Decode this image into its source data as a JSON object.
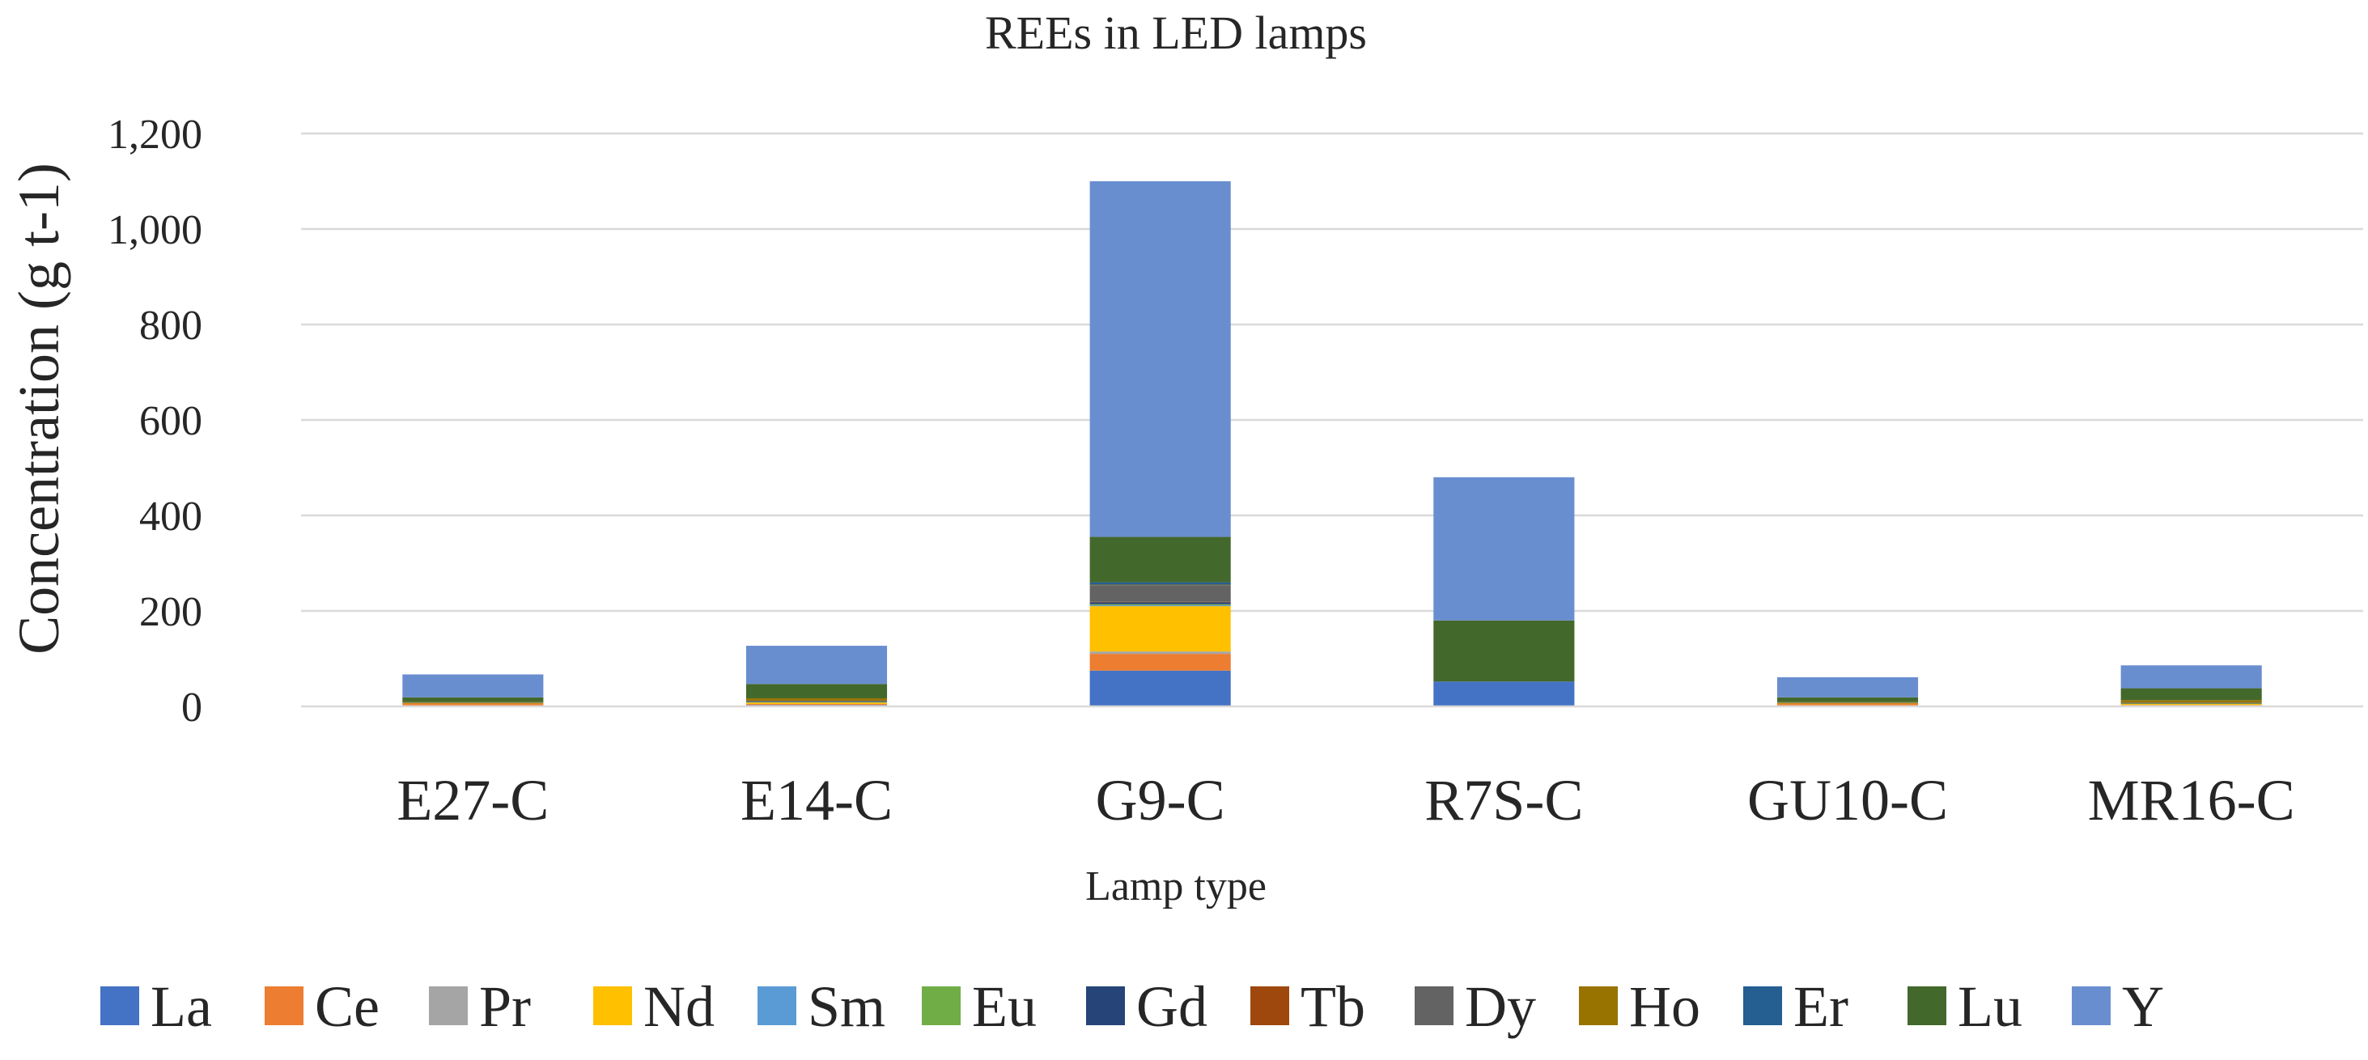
{
  "chart_data": {
    "type": "bar",
    "stacked": true,
    "title": "REEs in LED lamps",
    "xlabel": "Lamp type",
    "ylabel": "Concentration  (g t-1)",
    "ylim": [
      0,
      1200
    ],
    "yticks": [
      0,
      200,
      400,
      600,
      800,
      1000,
      1200
    ],
    "ytick_labels": [
      "0",
      "200",
      "400",
      "600",
      "800",
      "1,000",
      "1,200"
    ],
    "grid": true,
    "legend_position": "bottom",
    "categories": [
      "E27-C",
      "E14-C",
      "G9-C",
      "R7S-C",
      "GU10-C",
      "MR16-C"
    ],
    "series": [
      {
        "name": "La",
        "color": "#4472C4",
        "values": [
          2,
          3,
          75,
          52,
          2,
          2
        ]
      },
      {
        "name": "Ce",
        "color": "#ED7D31",
        "values": [
          3,
          2,
          35,
          0,
          3,
          1
        ]
      },
      {
        "name": "Pr",
        "color": "#A5A5A5",
        "values": [
          0,
          0,
          5,
          0,
          0,
          0
        ]
      },
      {
        "name": "Nd",
        "color": "#FFC000",
        "values": [
          1,
          3,
          95,
          0,
          1,
          2
        ]
      },
      {
        "name": "Sm",
        "color": "#5B9BD5",
        "values": [
          0,
          0,
          2,
          0,
          0,
          0
        ]
      },
      {
        "name": "Eu",
        "color": "#70AD47",
        "values": [
          0,
          1,
          2,
          0,
          0,
          1
        ]
      },
      {
        "name": "Gd",
        "color": "#264478",
        "values": [
          0,
          1,
          4,
          0,
          0,
          0
        ]
      },
      {
        "name": "Tb",
        "color": "#9E480E",
        "values": [
          1,
          0,
          1,
          0,
          1,
          0
        ]
      },
      {
        "name": "Dy",
        "color": "#636363",
        "values": [
          1,
          2,
          35,
          0,
          1,
          2
        ]
      },
      {
        "name": "Ho",
        "color": "#997300",
        "values": [
          1,
          5,
          1,
          0,
          1,
          5
        ]
      },
      {
        "name": "Er",
        "color": "#255E91",
        "values": [
          0,
          0,
          5,
          0,
          0,
          0
        ]
      },
      {
        "name": "Lu",
        "color": "#43682B",
        "values": [
          10,
          30,
          95,
          128,
          10,
          25
        ]
      },
      {
        "name": "Y",
        "color": "#698ED0",
        "values": [
          48,
          80,
          745,
          300,
          42,
          48
        ]
      }
    ]
  }
}
